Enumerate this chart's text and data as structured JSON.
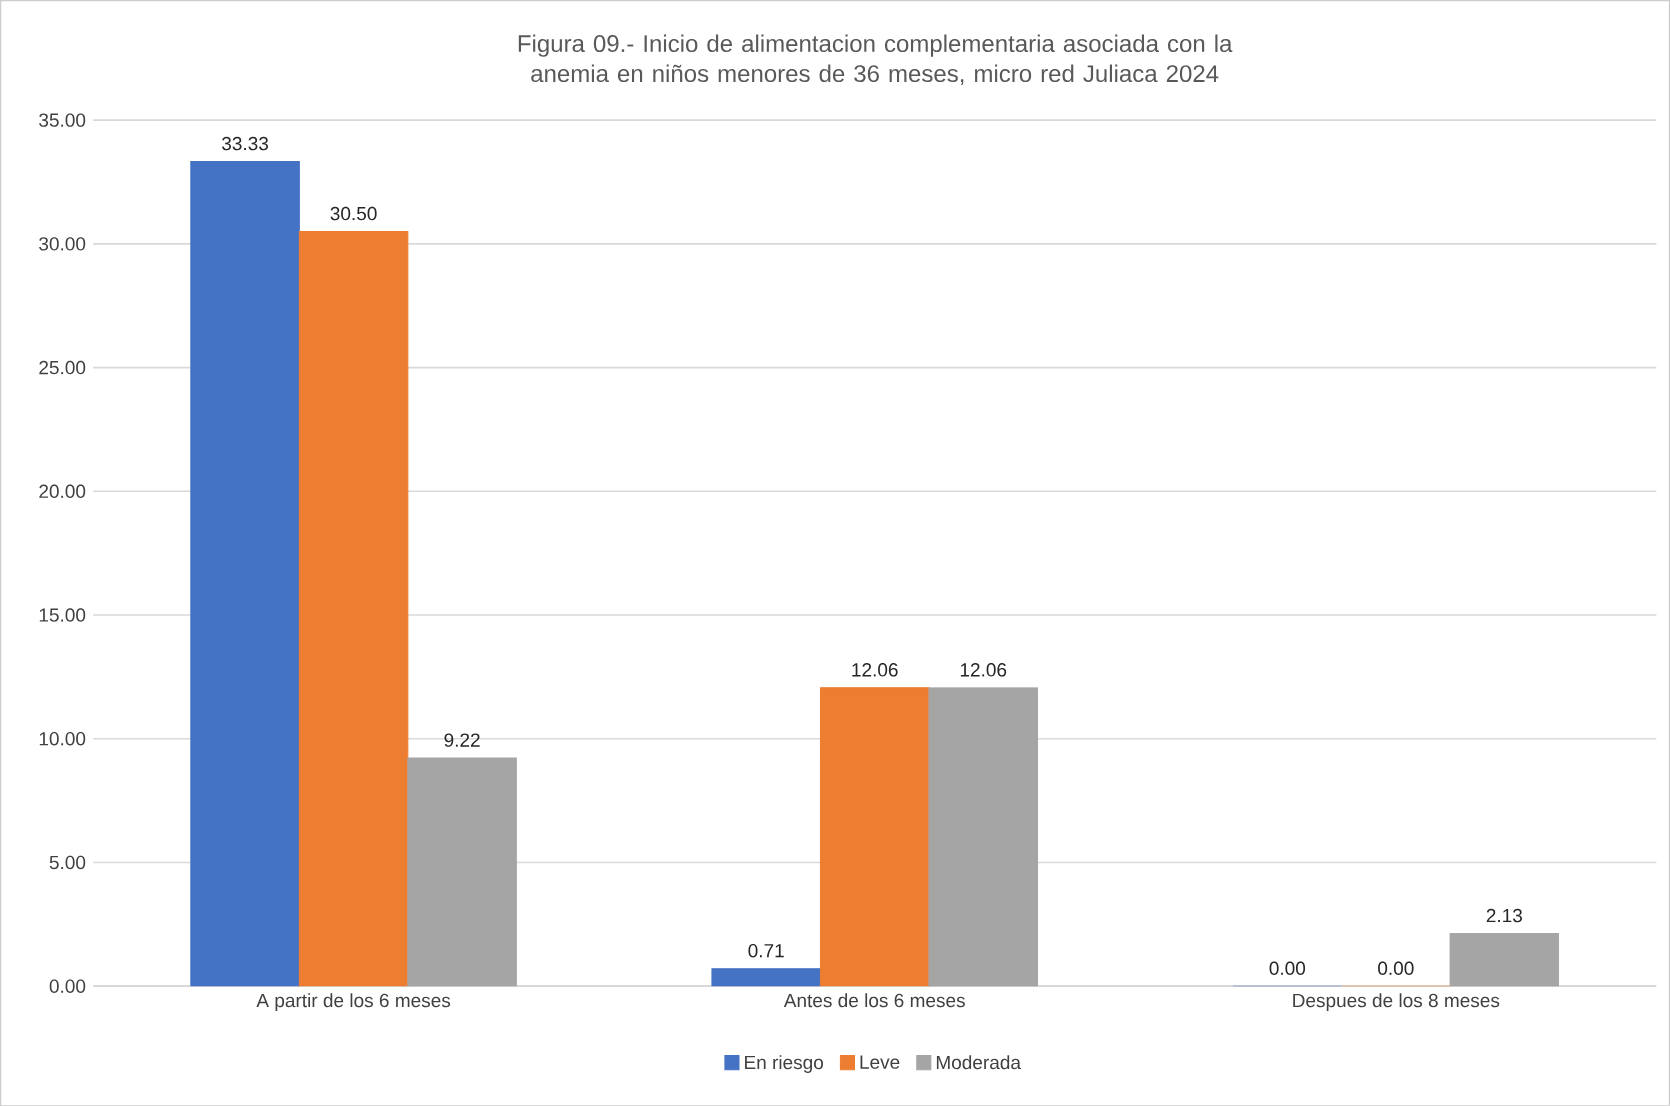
{
  "chart_data": {
    "type": "bar",
    "title": "Figura 09.- Inicio de alimentacion complementaria asociada con la anemia en niños menores de 36 meses, micro red Juliaca 2024",
    "categories": [
      "A partir de los 6 meses",
      "Antes de los 6 meses",
      "Despues de los 8 meses"
    ],
    "series": [
      {
        "name": "En riesgo",
        "color": "#4472c4",
        "values": [
          33.33,
          0.71,
          0.0
        ],
        "value_labels": [
          "33.33",
          "0.71",
          "0.00"
        ]
      },
      {
        "name": "Leve",
        "color": "#ed7d31",
        "values": [
          30.5,
          12.06,
          0.0
        ],
        "value_labels": [
          "30.50",
          "12.06",
          "0.00"
        ]
      },
      {
        "name": "Moderada",
        "color": "#a5a5a5",
        "values": [
          9.22,
          12.06,
          2.13
        ],
        "value_labels": [
          "9.22",
          "12.06",
          "2.13"
        ]
      }
    ],
    "ylim": [
      0,
      35
    ],
    "yticks": [
      {
        "value": 0,
        "label": "0.00"
      },
      {
        "value": 5,
        "label": "5.00"
      },
      {
        "value": 10,
        "label": "10.00"
      },
      {
        "value": 15,
        "label": "15.00"
      },
      {
        "value": 20,
        "label": "20.00"
      },
      {
        "value": 25,
        "label": "25.00"
      },
      {
        "value": 30,
        "label": "30.00"
      },
      {
        "value": 35,
        "label": "35.00"
      }
    ],
    "grid": "y",
    "legend": "bottom"
  }
}
